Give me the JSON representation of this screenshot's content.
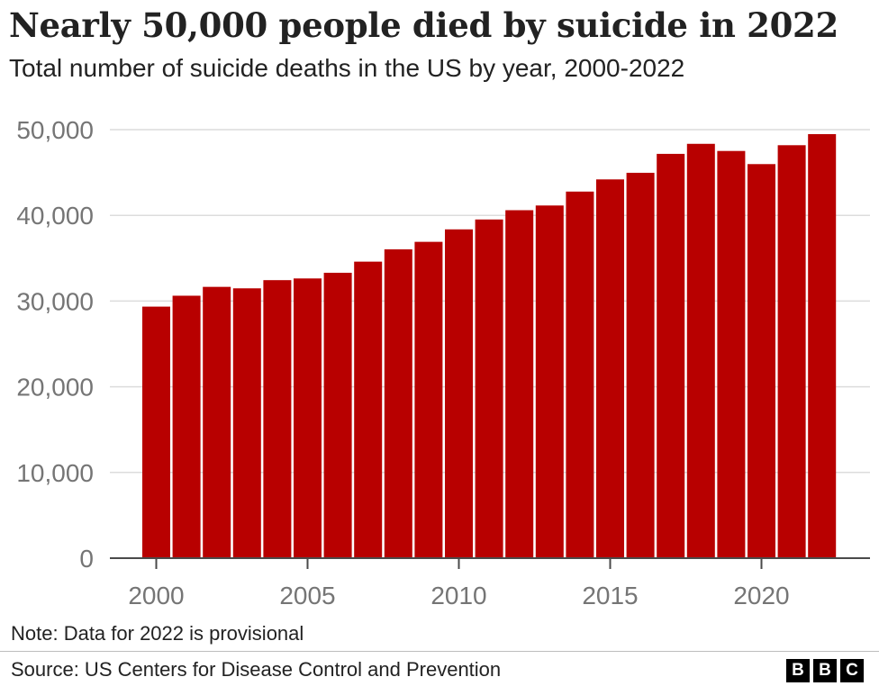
{
  "title": "Nearly 50,000 people died by suicide in 2022",
  "subtitle": "Total number of suicide deaths in the US by year, 2000-2022",
  "note": "Note: Data for 2022 is provisional",
  "source": "Source: US Centers for Disease Control and Prevention",
  "logo": [
    "B",
    "B",
    "C"
  ],
  "colors": {
    "bar": "#b80000",
    "grid": "#dcdcdc",
    "axis_text": "#757575"
  },
  "chart_data": {
    "type": "bar",
    "x": [
      2000,
      2001,
      2002,
      2003,
      2004,
      2005,
      2006,
      2007,
      2008,
      2009,
      2010,
      2011,
      2012,
      2013,
      2014,
      2015,
      2016,
      2017,
      2018,
      2019,
      2020,
      2021,
      2022
    ],
    "values": [
      29350,
      30622,
      31655,
      31484,
      32439,
      32637,
      33300,
      34598,
      36035,
      36909,
      38364,
      39518,
      40600,
      41149,
      42773,
      44193,
      44965,
      47173,
      48344,
      47511,
      45979,
      48183,
      49476
    ],
    "ylim": [
      0,
      50000
    ],
    "yticks": [
      0,
      10000,
      20000,
      30000,
      40000,
      50000
    ],
    "ytick_labels": [
      "0",
      "10,000",
      "20,000",
      "30,000",
      "40,000",
      "50,000"
    ],
    "xticks": [
      2000,
      2005,
      2010,
      2015,
      2020
    ],
    "xtick_labels": [
      "2000",
      "2005",
      "2010",
      "2015",
      "2020"
    ],
    "xlabel": "",
    "ylabel": "",
    "grid": true,
    "legend": "none"
  }
}
